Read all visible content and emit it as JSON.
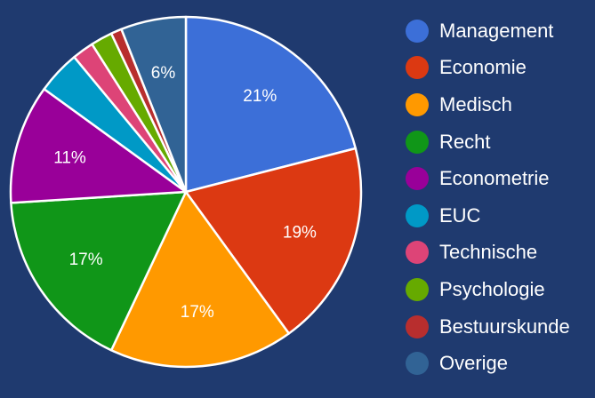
{
  "chart_data": {
    "type": "pie",
    "legend_position": "right",
    "slices": [
      {
        "name": "Management",
        "value": 21,
        "label": "21%",
        "color": "#3c6fd8"
      },
      {
        "name": "Economie",
        "value": 19,
        "label": "19%",
        "color": "#dc3912"
      },
      {
        "name": "Medisch",
        "value": 17,
        "label": "17%",
        "color": "#ff9900"
      },
      {
        "name": "Recht",
        "value": 17,
        "label": "17%",
        "color": "#109618"
      },
      {
        "name": "Econometrie",
        "value": 11,
        "label": "11%",
        "color": "#990099"
      },
      {
        "name": "EUC",
        "value": 4,
        "label": "",
        "color": "#0099c6"
      },
      {
        "name": "Technische",
        "value": 2,
        "label": "",
        "color": "#dd4477"
      },
      {
        "name": "Psychologie",
        "value": 2,
        "label": "",
        "color": "#66aa00"
      },
      {
        "name": "Bestuurskunde",
        "value": 1,
        "label": "",
        "color": "#b82e2e"
      },
      {
        "name": "Overige",
        "value": 6,
        "label": "6%",
        "color": "#316395"
      }
    ]
  }
}
